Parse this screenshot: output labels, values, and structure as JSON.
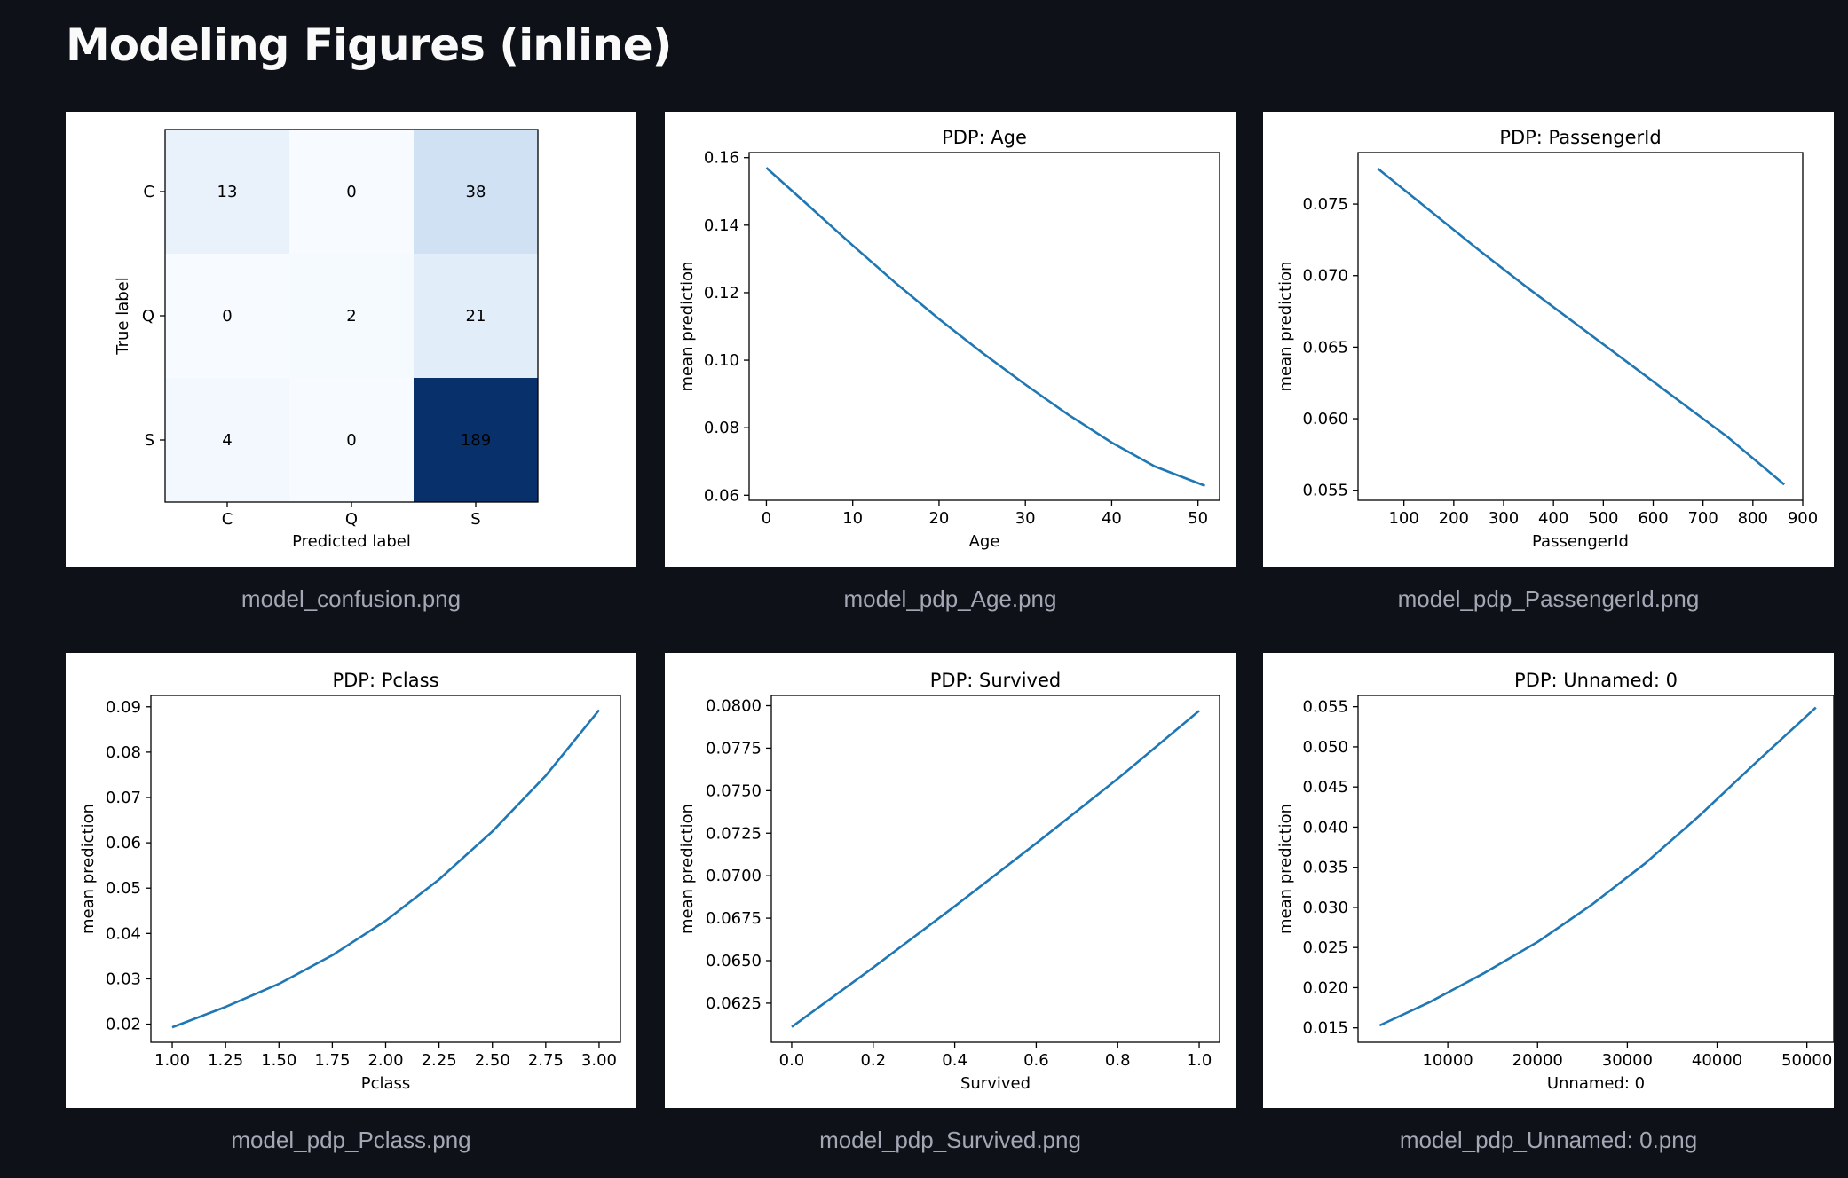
{
  "page": {
    "title": "Modeling Figures (inline)"
  },
  "colors": {
    "line": "#1f77b4",
    "background": "#0e1117",
    "caption": "#a3a8b4"
  },
  "figures": [
    {
      "caption": "model_confusion.png",
      "chart_data": {
        "type": "heatmap",
        "xlabel": "Predicted label",
        "ylabel": "True label",
        "x_categories": [
          "C",
          "Q",
          "S"
        ],
        "y_categories": [
          "C",
          "Q",
          "S"
        ],
        "values": [
          [
            13,
            0,
            38
          ],
          [
            0,
            2,
            21
          ],
          [
            4,
            0,
            189
          ]
        ],
        "colormap": "Blues",
        "cell_labels": [
          [
            "13",
            "0",
            "38"
          ],
          [
            "0",
            "2",
            "21"
          ],
          [
            "4",
            "0",
            "189"
          ]
        ]
      }
    },
    {
      "caption": "model_pdp_Age.png",
      "chart_data": {
        "type": "line",
        "title": "PDP: Age",
        "xlabel": "Age",
        "ylabel": "mean prediction",
        "xlim": [
          -2,
          52.5
        ],
        "ylim": [
          0.0585,
          0.1615
        ],
        "xticks": [
          0,
          10,
          20,
          30,
          40,
          50
        ],
        "xtick_labels": [
          "0",
          "10",
          "20",
          "30",
          "40",
          "50"
        ],
        "yticks": [
          0.06,
          0.08,
          0.1,
          0.12,
          0.14,
          0.16
        ],
        "ytick_labels": [
          "0.06",
          "0.08",
          "0.10",
          "0.12",
          "0.14",
          "0.16"
        ],
        "x": [
          0,
          5,
          10,
          15,
          20,
          25,
          30,
          35,
          40,
          45,
          50.8
        ],
        "y": [
          0.157,
          0.1455,
          0.134,
          0.1228,
          0.1122,
          0.1022,
          0.0928,
          0.0838,
          0.0756,
          0.0685,
          0.0628
        ]
      }
    },
    {
      "caption": "model_pdp_PassengerId.png",
      "chart_data": {
        "type": "line",
        "title": "PDP: PassengerId",
        "xlabel": "PassengerId",
        "ylabel": "mean prediction",
        "xlim": [
          8,
          900
        ],
        "ylim": [
          0.0543,
          0.0786
        ],
        "xticks": [
          100,
          200,
          300,
          400,
          500,
          600,
          700,
          800,
          900
        ],
        "xtick_labels": [
          "100",
          "200",
          "300",
          "400",
          "500",
          "600",
          "700",
          "800",
          "900"
        ],
        "yticks": [
          0.055,
          0.06,
          0.065,
          0.07,
          0.075
        ],
        "ytick_labels": [
          "0.055",
          "0.060",
          "0.065",
          "0.070",
          "0.075"
        ],
        "x": [
          47,
          150,
          250,
          350,
          450,
          550,
          650,
          750,
          863
        ],
        "y": [
          0.0775,
          0.0746,
          0.0718,
          0.0691,
          0.0665,
          0.0639,
          0.0613,
          0.0587,
          0.0554
        ]
      }
    },
    {
      "caption": "model_pdp_Pclass.png",
      "chart_data": {
        "type": "line",
        "title": "PDP: Pclass",
        "xlabel": "Pclass",
        "ylabel": "mean prediction",
        "xlim": [
          0.9,
          3.1
        ],
        "ylim": [
          0.016,
          0.0925
        ],
        "xticks": [
          1.0,
          1.25,
          1.5,
          1.75,
          2.0,
          2.25,
          2.5,
          2.75,
          3.0
        ],
        "xtick_labels": [
          "1.00",
          "1.25",
          "1.50",
          "1.75",
          "2.00",
          "2.25",
          "2.50",
          "2.75",
          "3.00"
        ],
        "yticks": [
          0.02,
          0.03,
          0.04,
          0.05,
          0.06,
          0.07,
          0.08,
          0.09
        ],
        "ytick_labels": [
          "0.02",
          "0.03",
          "0.04",
          "0.05",
          "0.06",
          "0.07",
          "0.08",
          "0.09"
        ],
        "x": [
          1.0,
          1.25,
          1.5,
          1.75,
          2.0,
          2.25,
          2.5,
          2.75,
          3.0
        ],
        "y": [
          0.0193,
          0.0238,
          0.0289,
          0.0352,
          0.0428,
          0.0519,
          0.0625,
          0.0748,
          0.0893
        ]
      }
    },
    {
      "caption": "model_pdp_Survived.png",
      "chart_data": {
        "type": "line",
        "title": "PDP: Survived",
        "xlabel": "Survived",
        "ylabel": "mean prediction",
        "xlim": [
          -0.05,
          1.05
        ],
        "ylim": [
          0.0602,
          0.0806
        ],
        "xticks": [
          0,
          0.2,
          0.4,
          0.6,
          0.8,
          1.0
        ],
        "xtick_labels": [
          "0.0",
          "0.2",
          "0.4",
          "0.6",
          "0.8",
          "1.0"
        ],
        "yticks": [
          0.0625,
          0.065,
          0.0675,
          0.07,
          0.0725,
          0.075,
          0.0775,
          0.08
        ],
        "ytick_labels": [
          "0.0625",
          "0.0650",
          "0.0675",
          "0.0700",
          "0.0725",
          "0.0750",
          "0.0775",
          "0.0800"
        ],
        "x": [
          0,
          0.2,
          0.4,
          0.6,
          0.8,
          1.0
        ],
        "y": [
          0.0611,
          0.0646,
          0.0682,
          0.0719,
          0.0757,
          0.0797
        ]
      }
    },
    {
      "caption": "model_pdp_Unnamed: 0.png",
      "chart_data": {
        "type": "line",
        "title": "PDP: Unnamed: 0",
        "xlabel": "Unnamed: 0",
        "ylabel": "mean prediction",
        "xlim": [
          0,
          53000
        ],
        "ylim": [
          0.0132,
          0.0564
        ],
        "xticks": [
          10000,
          20000,
          30000,
          40000,
          50000
        ],
        "xtick_labels": [
          "10000",
          "20000",
          "30000",
          "40000",
          "50000"
        ],
        "yticks": [
          0.015,
          0.02,
          0.025,
          0.03,
          0.035,
          0.04,
          0.045,
          0.05,
          0.055
        ],
        "ytick_labels": [
          "0.015",
          "0.020",
          "0.025",
          "0.030",
          "0.035",
          "0.040",
          "0.045",
          "0.050",
          "0.055"
        ],
        "x": [
          2400,
          8000,
          14000,
          20000,
          26000,
          32000,
          38000,
          44000,
          51000
        ],
        "y": [
          0.0153,
          0.0182,
          0.0218,
          0.0257,
          0.0303,
          0.0355,
          0.0414,
          0.0477,
          0.0549
        ]
      }
    }
  ]
}
